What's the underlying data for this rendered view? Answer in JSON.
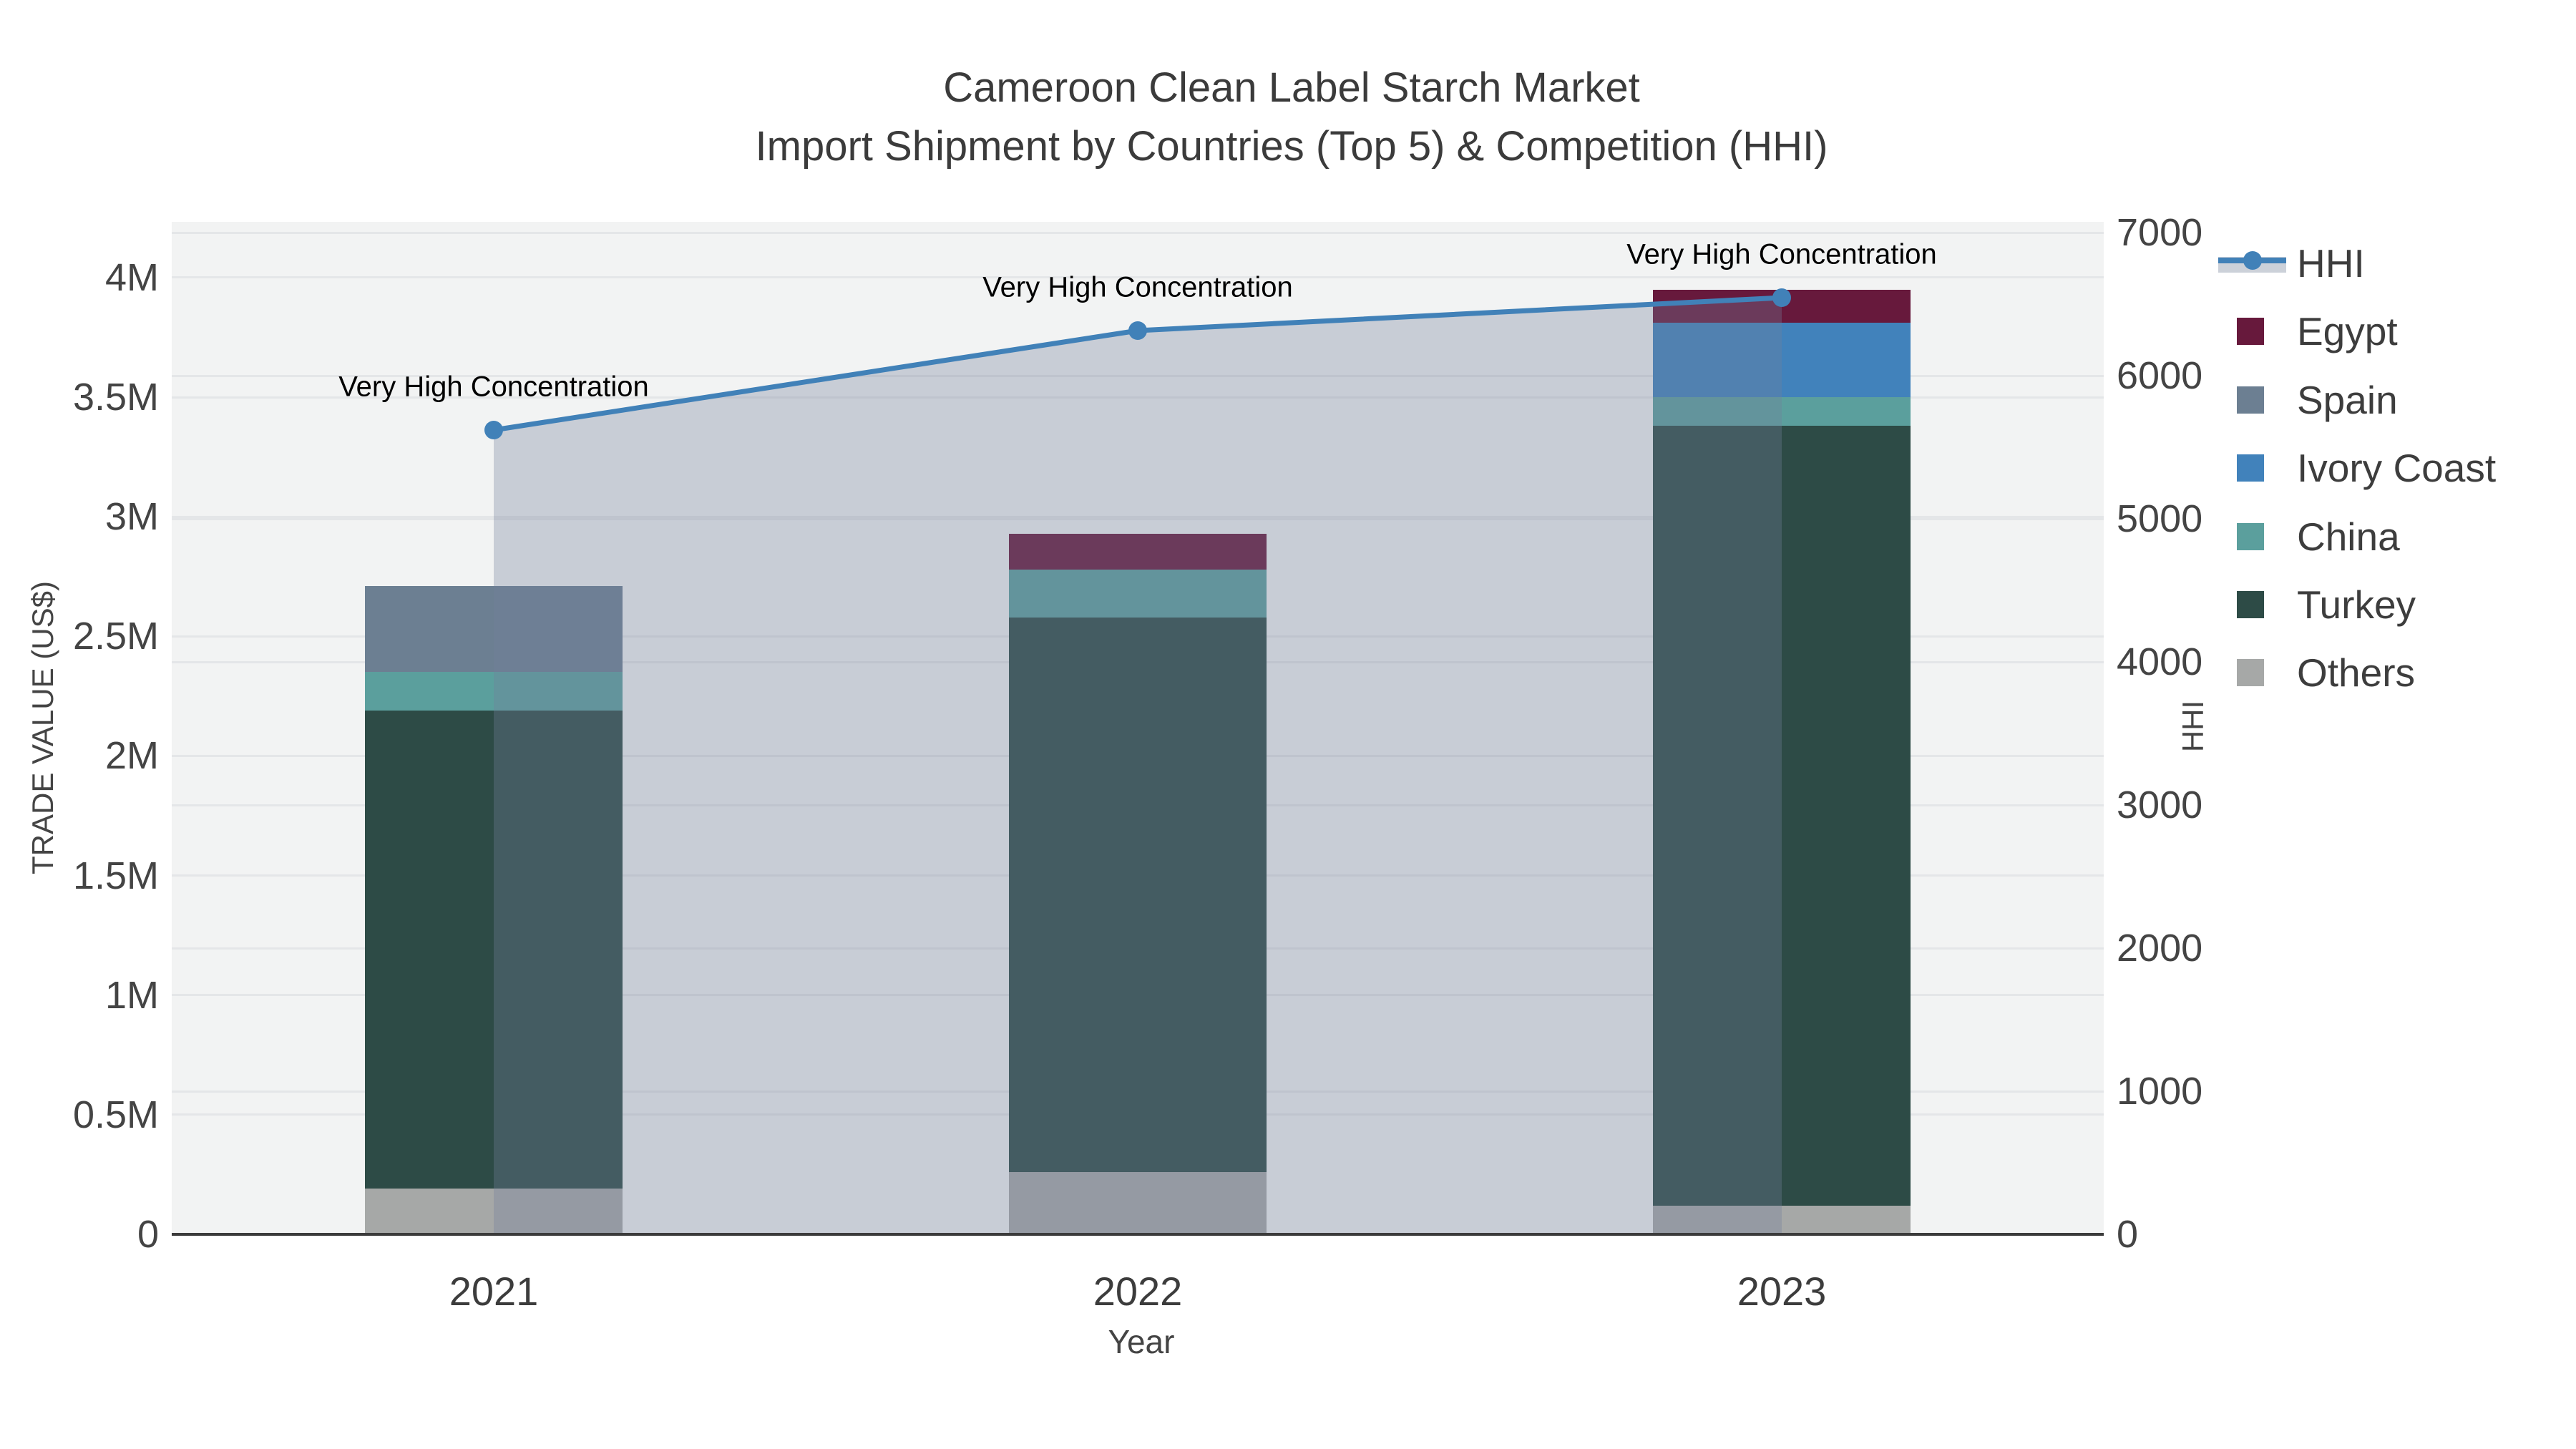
{
  "title": {
    "line1": "Cameroon Clean Label Starch Market",
    "line2": "Import Shipment by Countries (Top 5) & Competition (HHI)"
  },
  "chart_data": {
    "type": "bar",
    "subtype": "stacked-bar-with-line",
    "categories": [
      "2021",
      "2022",
      "2023"
    ],
    "series": [
      {
        "name": "Others",
        "color": "#a6a8a7",
        "values": [
          190000,
          260000,
          120000
        ]
      },
      {
        "name": "Turkey",
        "color": "#2d4b46",
        "values": [
          2000000,
          2320000,
          3260000
        ]
      },
      {
        "name": "China",
        "color": "#5b9f9d",
        "values": [
          160000,
          200000,
          120000
        ]
      },
      {
        "name": "Ivory Coast",
        "color": "#4182bb",
        "values": [
          0,
          0,
          310000
        ]
      },
      {
        "name": "Spain",
        "color": "#6c7f92",
        "values": [
          360000,
          0,
          0
        ]
      },
      {
        "name": "Egypt",
        "color": "#67193c",
        "values": [
          0,
          150000,
          140000
        ]
      }
    ],
    "line_series": {
      "name": "HHI",
      "color": "#4181b8",
      "area_fill": "rgba(114,129,154,0.33)",
      "values": [
        5620,
        6315,
        6545
      ]
    },
    "annotations": [
      {
        "category": "2021",
        "text": "Very High Concentration"
      },
      {
        "category": "2022",
        "text": "Very High Concentration"
      },
      {
        "category": "2023",
        "text": "Very High Concentration"
      }
    ],
    "xlabel": "Year",
    "ylabel": "TRADE VALUE (US$)",
    "y2label": "HHI",
    "ylim": [
      0,
      4233000
    ],
    "y2lim": [
      0,
      7075
    ],
    "yticks": [
      0,
      500000,
      1000000,
      1500000,
      2000000,
      2500000,
      3000000,
      3500000,
      4000000
    ],
    "ytick_labels": [
      "0",
      "0.5M",
      "1M",
      "1.5M",
      "2M",
      "2.5M",
      "3M",
      "3.5M",
      "4M"
    ],
    "y2ticks": [
      0,
      1000,
      2000,
      3000,
      4000,
      5000,
      6000,
      7000
    ],
    "y2tick_labels": [
      "0",
      "1000",
      "2000",
      "3000",
      "4000",
      "5000",
      "6000",
      "7000"
    ],
    "legend_order": [
      "HHI",
      "Egypt",
      "Spain",
      "Ivory Coast",
      "China",
      "Turkey",
      "Others"
    ],
    "legend_position": "right",
    "grid": true,
    "plot_bg": "#f2f3f3",
    "grid_color": "#e4e6e8"
  }
}
